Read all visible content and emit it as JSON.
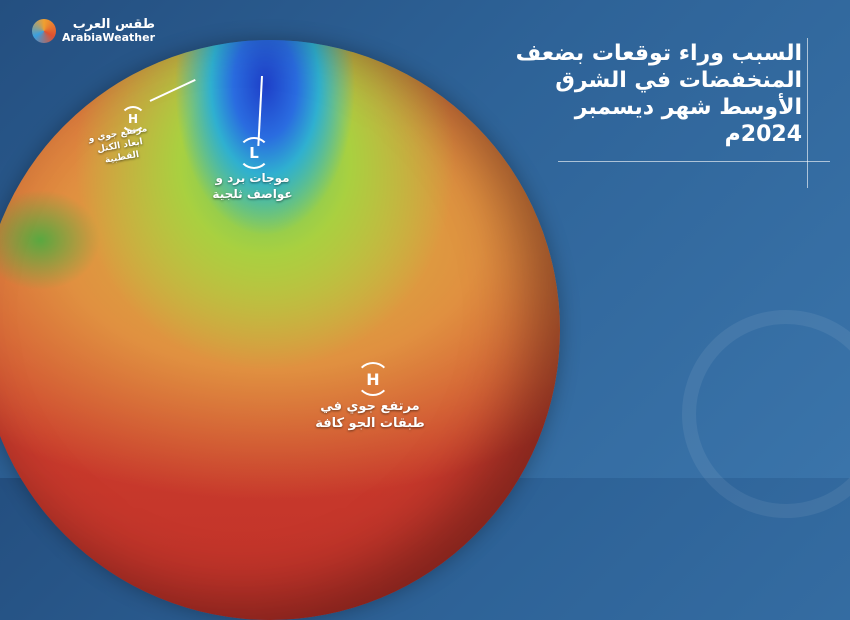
{
  "logo": {
    "arabic": "طقس العرب",
    "english": "ArabiaWeather"
  },
  "headline": "السبب وراء توقعات بضعف المنخفضات في الشرق الأوسط شهر ديسمبر 2024م",
  "map_labels": {
    "low_symbol": "L",
    "low_caption": "موجات برد و عواصف ثلجية",
    "high_north_symbol": "H",
    "high_north_caption": "مرتفع جوي و ابعاد الكتل القطبية",
    "high_south_symbol": "H",
    "high_south_caption": "مرتفع جوي في طبقات الجو كافة"
  },
  "colors": {
    "background": "#2e6398",
    "cold": "#1e3fc8",
    "warm": "#cf3f2e",
    "neutral": "#d6b840"
  }
}
